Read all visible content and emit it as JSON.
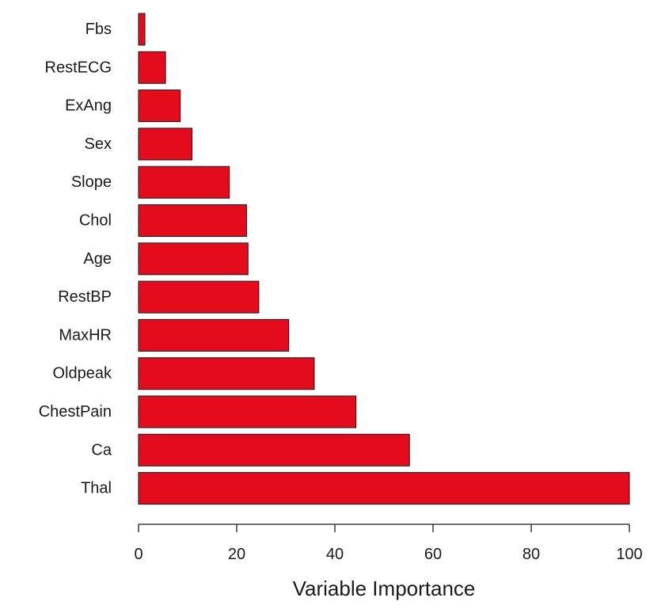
{
  "chart_data": {
    "type": "bar",
    "orientation": "horizontal",
    "title": "",
    "xlabel": "Variable Importance",
    "ylabel": "",
    "xlim": [
      0,
      100
    ],
    "xticks": [
      0,
      20,
      40,
      60,
      80,
      100
    ],
    "bar_color": "#e30b1c",
    "categories": [
      "Fbs",
      "RestECG",
      "ExAng",
      "Sex",
      "Slope",
      "Chol",
      "Age",
      "RestBP",
      "MaxHR",
      "Oldpeak",
      "ChestPain",
      "Ca",
      "Thal"
    ],
    "values": [
      1.3,
      5.5,
      8.5,
      10.9,
      18.5,
      22.0,
      22.3,
      24.5,
      30.6,
      35.8,
      44.3,
      55.2,
      100
    ]
  }
}
